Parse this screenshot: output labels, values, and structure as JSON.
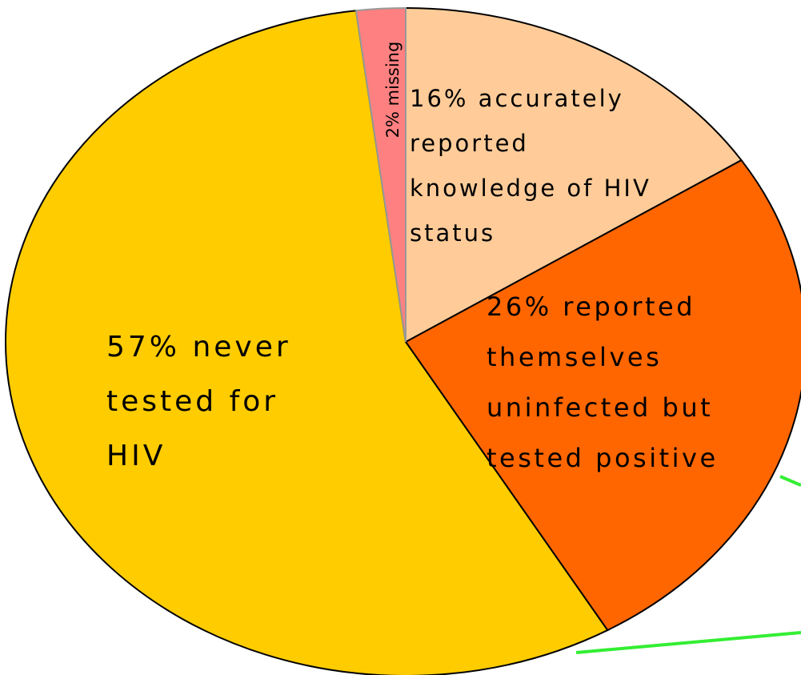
{
  "chart_data": {
    "type": "pie",
    "categories": [
      "accurately reported knowledge of HIV status",
      "reported themselves uninfected but tested positive",
      "never tested for HIV",
      "missing"
    ],
    "values": [
      16,
      26,
      57,
      2
    ],
    "value_labels": [
      [
        "16% accurately",
        "reported",
        "knowledge of HIV",
        "status"
      ],
      [
        "26% reported",
        "themselves",
        "uninfected but",
        "tested positive"
      ],
      [
        "57% never",
        "tested for",
        "HIV"
      ],
      [
        "2% missing"
      ]
    ],
    "colors": [
      "#FFCC99",
      "#FF6600",
      "#FFCC00",
      "#FF8080"
    ]
  }
}
